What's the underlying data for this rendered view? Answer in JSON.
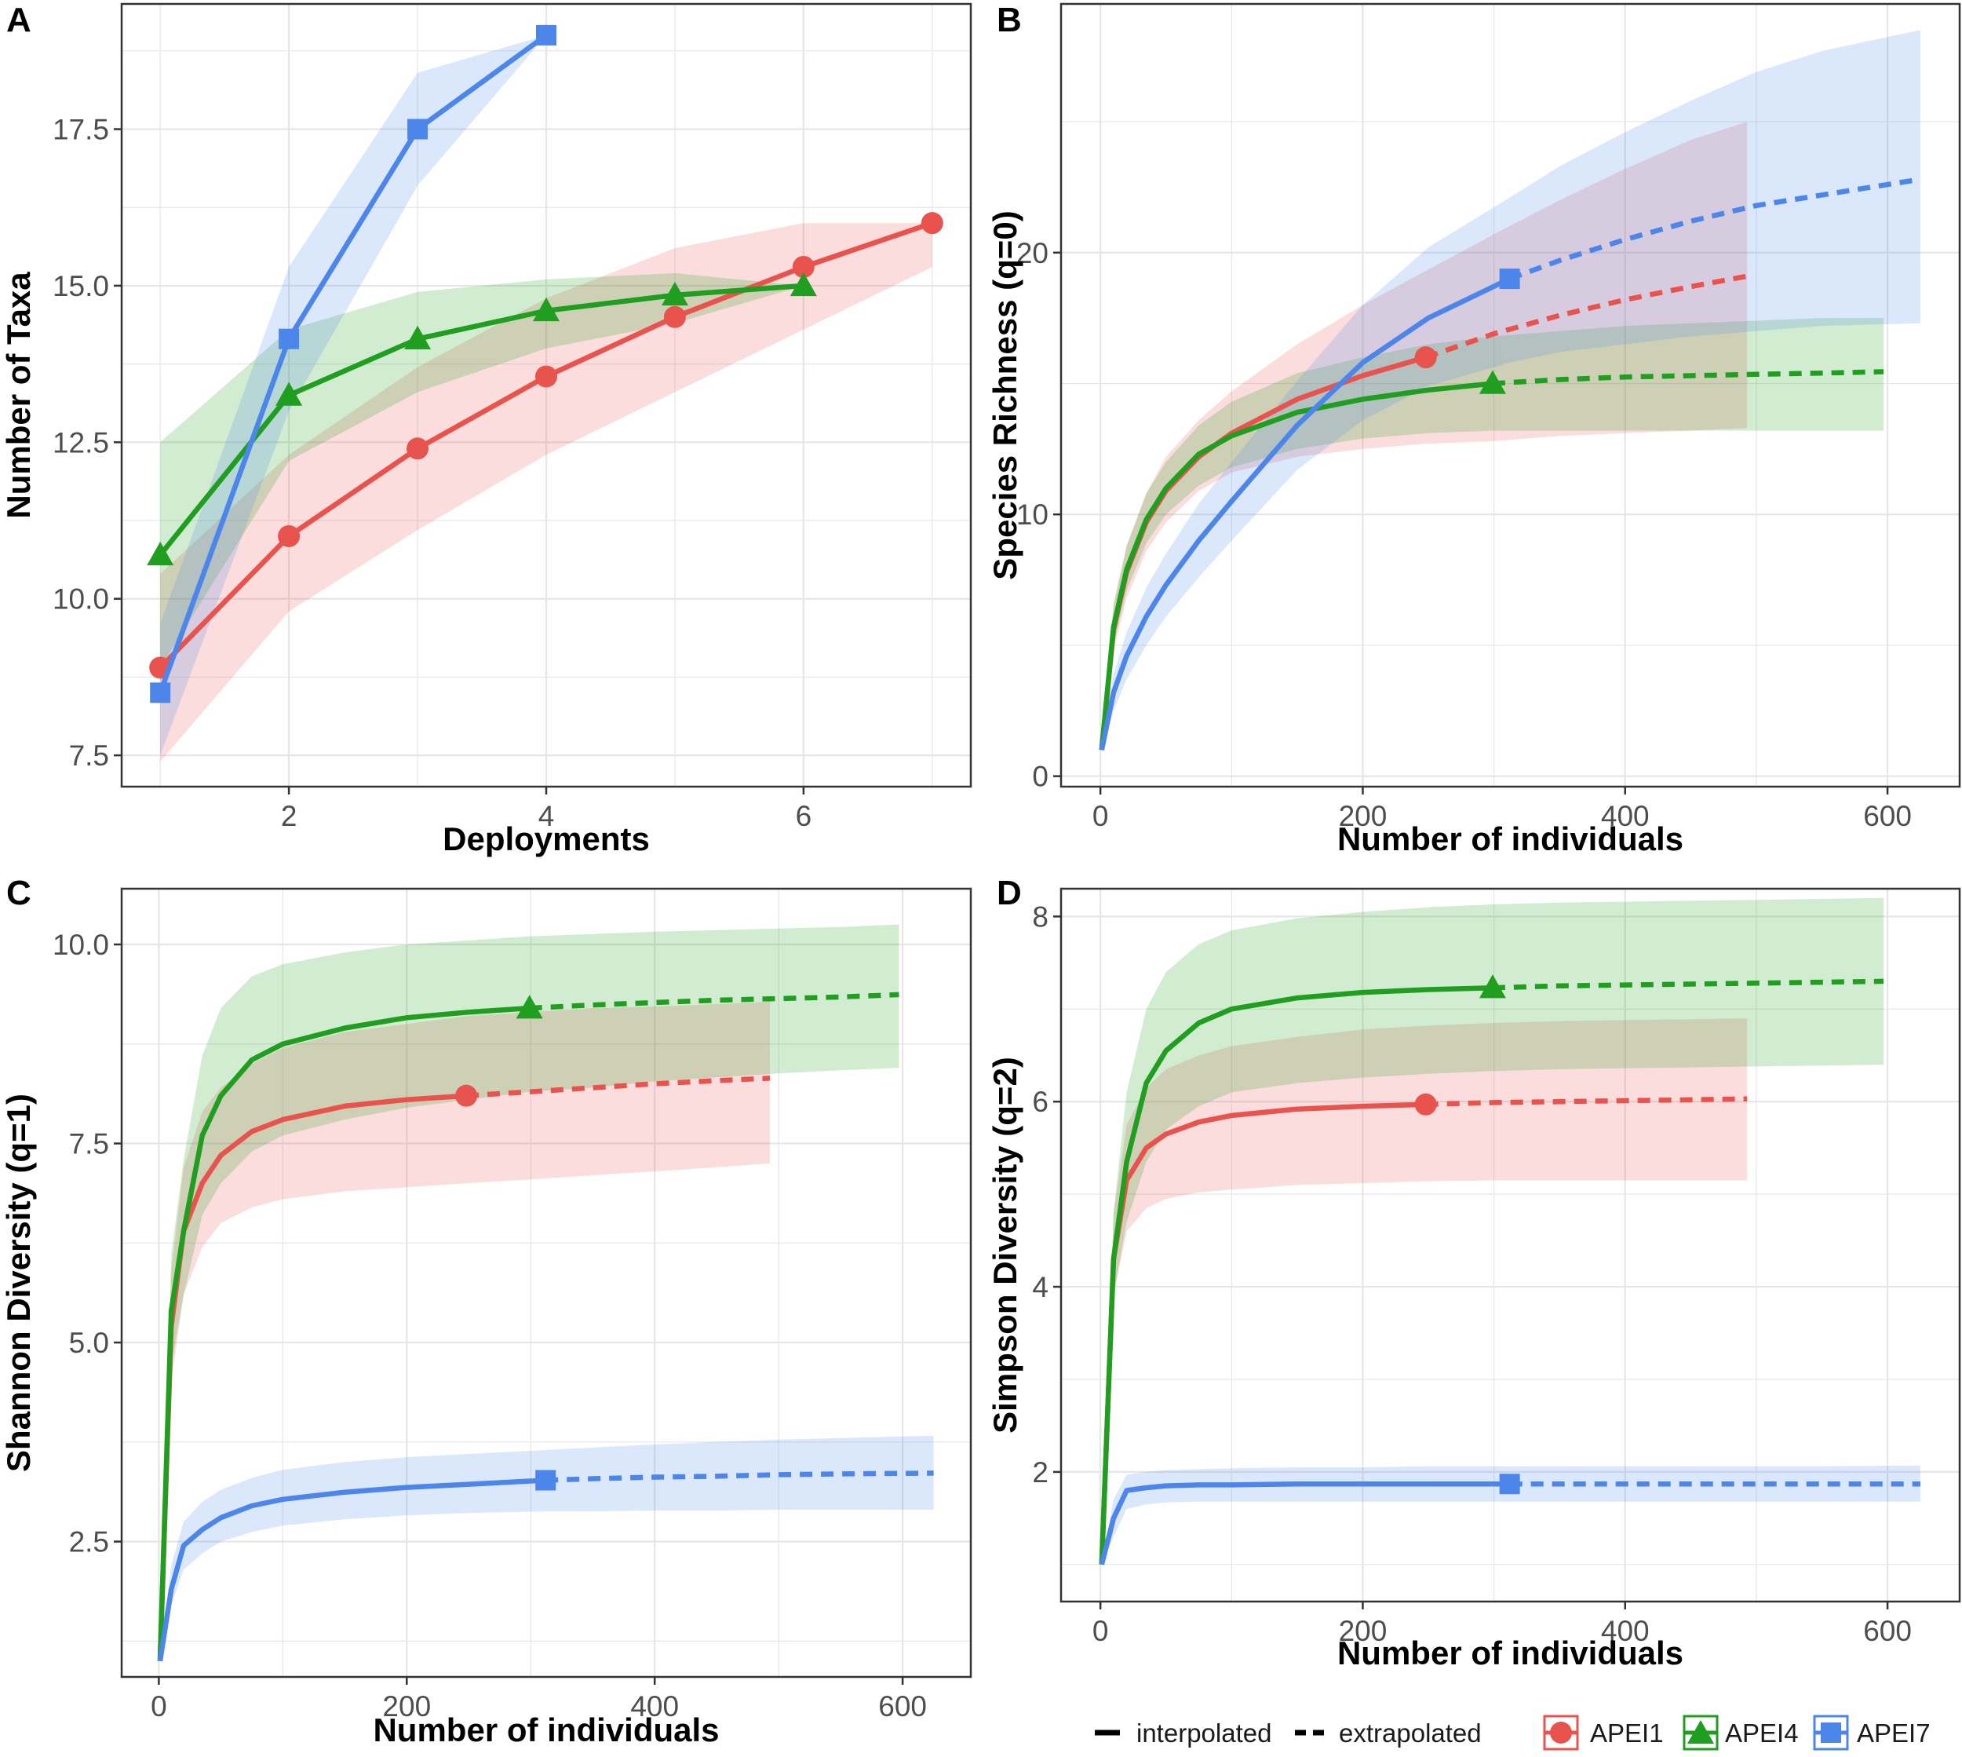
{
  "colors": {
    "APEI1": "#e8534e",
    "APEI4": "#1f9e1f",
    "APEI7": "#4c86ea",
    "grid": "#e6e6e6",
    "panel_border": "#333333"
  },
  "legend": {
    "interpolated": "interpolated",
    "extrapolated": "extrapolated",
    "series": [
      "APEI1",
      "APEI4",
      "APEI7"
    ]
  },
  "chart_data": [
    {
      "panel": "A",
      "type": "line",
      "xlabel": "Deployments",
      "ylabel": "Number of Taxa",
      "xlim": [
        0.7,
        7.3
      ],
      "ylim": [
        7.0,
        19.5
      ],
      "xticks": [
        2,
        4,
        6
      ],
      "xtick_labels": [
        "2",
        "4",
        "6"
      ],
      "yticks": [
        7.5,
        10.0,
        12.5,
        15.0,
        17.5
      ],
      "ytick_labels": [
        "7.5",
        "10.0",
        "12.5",
        "15.0",
        "17.5"
      ],
      "series": [
        {
          "name": "APEI1",
          "marker": "circle",
          "x": [
            1,
            2,
            3,
            4,
            5,
            6,
            7
          ],
          "y": [
            8.9,
            11.0,
            12.4,
            13.55,
            14.5,
            15.3,
            16.0
          ],
          "lower": [
            7.4,
            9.8,
            11.1,
            12.3,
            13.3,
            14.3,
            15.3
          ],
          "upper": [
            10.4,
            12.3,
            13.7,
            14.8,
            15.6,
            16.0,
            16.0
          ]
        },
        {
          "name": "APEI4",
          "marker": "triangle",
          "x": [
            1,
            2,
            3,
            4,
            5,
            6
          ],
          "y": [
            10.7,
            13.25,
            14.15,
            14.6,
            14.85,
            15.0
          ],
          "lower": [
            8.9,
            12.2,
            13.3,
            14.0,
            14.4,
            15.0
          ],
          "upper": [
            12.5,
            14.3,
            14.9,
            15.1,
            15.2,
            15.0
          ]
        },
        {
          "name": "APEI7",
          "marker": "square",
          "x": [
            1,
            2,
            3,
            4
          ],
          "y": [
            8.5,
            14.15,
            17.5,
            19.0
          ],
          "lower": [
            7.5,
            13.0,
            16.6,
            19.0
          ],
          "upper": [
            9.6,
            15.3,
            18.4,
            19.0
          ]
        }
      ]
    },
    {
      "panel": "B",
      "type": "line",
      "xlabel": "Number of individuals",
      "ylabel": "Species Richness (q=0)",
      "xlim": [
        -30,
        655
      ],
      "ylim": [
        -0.4,
        29.5
      ],
      "xticks": [
        0,
        200,
        400,
        600
      ],
      "xtick_labels": [
        "0",
        "200",
        "400",
        "600"
      ],
      "yticks": [
        0,
        10,
        20
      ],
      "ytick_labels": [
        "0",
        "10",
        "20"
      ],
      "series": [
        {
          "name": "APEI1",
          "marker": "circle",
          "observed": [
            248,
            16.0
          ],
          "x": [
            1,
            10,
            20,
            35,
            50,
            75,
            100,
            150,
            200,
            248,
            300,
            350,
            400,
            450,
            493
          ],
          "y": [
            1.0,
            5.6,
            7.8,
            9.7,
            10.9,
            12.2,
            13.1,
            14.4,
            15.3,
            16.0,
            16.9,
            17.6,
            18.2,
            18.7,
            19.1
          ],
          "lower": [
            1.0,
            4.8,
            6.8,
            8.6,
            9.7,
            10.9,
            11.6,
            12.2,
            12.5,
            12.7,
            12.8,
            13.0,
            13.1,
            13.2,
            13.3
          ],
          "upper": [
            1.0,
            6.6,
            8.8,
            10.8,
            12.2,
            13.6,
            14.7,
            16.5,
            18.0,
            19.3,
            20.7,
            22.0,
            23.2,
            24.3,
            25.0
          ]
        },
        {
          "name": "APEI4",
          "marker": "triangle",
          "observed": [
            299,
            15.0
          ],
          "x": [
            1,
            10,
            20,
            35,
            50,
            75,
            100,
            150,
            200,
            250,
            299,
            350,
            400,
            450,
            500,
            550,
            597
          ],
          "y": [
            1.0,
            5.7,
            7.9,
            9.8,
            11.0,
            12.3,
            13.0,
            13.9,
            14.4,
            14.75,
            15.0,
            15.15,
            15.25,
            15.3,
            15.35,
            15.4,
            15.45
          ],
          "lower": [
            1.0,
            5.0,
            7.1,
            8.9,
            10.0,
            11.1,
            11.8,
            12.5,
            12.9,
            13.1,
            13.2,
            13.2,
            13.2,
            13.2,
            13.2,
            13.2,
            13.2
          ],
          "upper": [
            1.0,
            6.5,
            8.8,
            10.8,
            12.0,
            13.4,
            14.3,
            15.4,
            16.0,
            16.5,
            16.8,
            17.0,
            17.2,
            17.3,
            17.4,
            17.5,
            17.5
          ]
        },
        {
          "name": "APEI7",
          "marker": "square",
          "observed": [
            312,
            19.0
          ],
          "x": [
            1,
            10,
            20,
            35,
            50,
            75,
            100,
            150,
            200,
            250,
            312,
            350,
            400,
            450,
            500,
            550,
            625
          ],
          "y": [
            1.0,
            3.2,
            4.6,
            6.1,
            7.3,
            9.0,
            10.5,
            13.4,
            15.8,
            17.5,
            19.0,
            19.7,
            20.5,
            21.2,
            21.8,
            22.2,
            22.8
          ],
          "lower": [
            1.0,
            2.5,
            3.7,
            5.0,
            6.1,
            7.6,
            9.0,
            11.7,
            13.6,
            14.9,
            15.8,
            16.2,
            16.5,
            16.8,
            17.0,
            17.2,
            17.3
          ],
          "upper": [
            1.0,
            3.9,
            5.5,
            7.2,
            8.5,
            10.4,
            12.0,
            15.1,
            18.0,
            20.2,
            22.1,
            23.3,
            24.6,
            25.8,
            26.9,
            27.7,
            28.5
          ]
        }
      ]
    },
    {
      "panel": "C",
      "type": "line",
      "xlabel": "Number of individuals",
      "ylabel": "Shannon Diversity (q=1)",
      "xlim": [
        -30,
        655
      ],
      "ylim": [
        0.8,
        10.7
      ],
      "xticks": [
        0,
        200,
        400,
        600
      ],
      "xtick_labels": [
        "0",
        "200",
        "400",
        "600"
      ],
      "yticks": [
        2.5,
        5.0,
        7.5,
        10.0
      ],
      "ytick_labels": [
        "2.5",
        "5.0",
        "7.5",
        "10.0"
      ],
      "series": [
        {
          "name": "APEI1",
          "marker": "circle",
          "observed": [
            248,
            8.1
          ],
          "x": [
            1,
            10,
            20,
            35,
            50,
            75,
            100,
            150,
            200,
            248,
            300,
            350,
            400,
            450,
            493
          ],
          "y": [
            1.0,
            5.2,
            6.4,
            7.0,
            7.35,
            7.65,
            7.8,
            7.97,
            8.05,
            8.1,
            8.15,
            8.2,
            8.25,
            8.29,
            8.32
          ],
          "lower": [
            1.0,
            4.5,
            5.6,
            6.2,
            6.5,
            6.7,
            6.8,
            6.9,
            6.95,
            7.0,
            7.05,
            7.1,
            7.15,
            7.2,
            7.25
          ],
          "upper": [
            1.0,
            5.9,
            7.2,
            7.9,
            8.2,
            8.5,
            8.7,
            8.9,
            9.0,
            9.1,
            9.15,
            9.2,
            9.22,
            9.25,
            9.28
          ]
        },
        {
          "name": "APEI4",
          "marker": "triangle",
          "observed": [
            299,
            9.2
          ],
          "x": [
            1,
            10,
            20,
            35,
            50,
            75,
            100,
            150,
            200,
            250,
            299,
            350,
            400,
            450,
            500,
            550,
            597
          ],
          "y": [
            1.0,
            5.4,
            6.4,
            7.6,
            8.1,
            8.55,
            8.75,
            8.95,
            9.08,
            9.15,
            9.2,
            9.24,
            9.27,
            9.3,
            9.32,
            9.34,
            9.37
          ],
          "lower": [
            1.0,
            4.7,
            5.6,
            6.6,
            7.0,
            7.4,
            7.6,
            7.8,
            7.95,
            8.05,
            8.15,
            8.2,
            8.28,
            8.33,
            8.38,
            8.42,
            8.45
          ],
          "upper": [
            1.0,
            6.1,
            7.3,
            8.6,
            9.2,
            9.6,
            9.75,
            9.9,
            10.0,
            10.05,
            10.1,
            10.13,
            10.16,
            10.18,
            10.2,
            10.22,
            10.25
          ]
        },
        {
          "name": "APEI7",
          "marker": "square",
          "observed": [
            312,
            3.27
          ],
          "x": [
            1,
            10,
            20,
            35,
            50,
            75,
            100,
            150,
            200,
            250,
            312,
            350,
            400,
            450,
            500,
            550,
            625
          ],
          "y": [
            1.0,
            1.9,
            2.45,
            2.65,
            2.8,
            2.95,
            3.03,
            3.12,
            3.18,
            3.22,
            3.27,
            3.29,
            3.31,
            3.32,
            3.34,
            3.35,
            3.36
          ],
          "lower": [
            1.0,
            1.7,
            2.15,
            2.35,
            2.5,
            2.62,
            2.7,
            2.78,
            2.83,
            2.86,
            2.88,
            2.88,
            2.89,
            2.89,
            2.9,
            2.9,
            2.9
          ],
          "upper": [
            1.0,
            2.2,
            2.75,
            3.0,
            3.15,
            3.3,
            3.4,
            3.5,
            3.56,
            3.6,
            3.65,
            3.68,
            3.72,
            3.75,
            3.78,
            3.8,
            3.83
          ]
        }
      ]
    },
    {
      "panel": "D",
      "type": "line",
      "xlabel": "Number of individuals",
      "ylabel": "Simpson Diversity (q=2)",
      "xlim": [
        -30,
        655
      ],
      "ylim": [
        0.6,
        8.3
      ],
      "xticks": [
        0,
        200,
        400,
        600
      ],
      "xtick_labels": [
        "0",
        "200",
        "400",
        "600"
      ],
      "yticks": [
        2,
        4,
        6,
        8
      ],
      "ytick_labels": [
        "2",
        "4",
        "6",
        "8"
      ],
      "series": [
        {
          "name": "APEI1",
          "marker": "circle",
          "observed": [
            248,
            5.97
          ],
          "x": [
            1,
            10,
            20,
            35,
            50,
            75,
            100,
            150,
            200,
            248,
            300,
            350,
            400,
            450,
            493
          ],
          "y": [
            1.0,
            4.3,
            5.15,
            5.5,
            5.65,
            5.78,
            5.85,
            5.92,
            5.95,
            5.97,
            5.99,
            6.0,
            6.01,
            6.02,
            6.03
          ],
          "lower": [
            1.0,
            3.9,
            4.6,
            4.85,
            4.95,
            5.02,
            5.05,
            5.1,
            5.12,
            5.14,
            5.15,
            5.15,
            5.15,
            5.15,
            5.15
          ],
          "upper": [
            1.0,
            4.8,
            5.75,
            6.15,
            6.35,
            6.5,
            6.6,
            6.7,
            6.78,
            6.82,
            6.85,
            6.87,
            6.88,
            6.89,
            6.9
          ]
        },
        {
          "name": "APEI4",
          "marker": "triangle",
          "observed": [
            299,
            7.23
          ],
          "x": [
            1,
            10,
            20,
            35,
            50,
            75,
            100,
            150,
            200,
            250,
            299,
            350,
            400,
            450,
            500,
            550,
            597
          ],
          "y": [
            1.0,
            4.3,
            5.35,
            6.2,
            6.55,
            6.85,
            7.0,
            7.12,
            7.18,
            7.21,
            7.23,
            7.25,
            7.26,
            7.27,
            7.28,
            7.29,
            7.3
          ],
          "lower": [
            1.0,
            3.9,
            4.7,
            5.35,
            5.7,
            5.95,
            6.1,
            6.2,
            6.26,
            6.3,
            6.33,
            6.35,
            6.36,
            6.37,
            6.38,
            6.39,
            6.4
          ],
          "upper": [
            1.0,
            4.8,
            6.1,
            7.0,
            7.4,
            7.7,
            7.85,
            7.98,
            8.05,
            8.1,
            8.13,
            8.15,
            8.16,
            8.17,
            8.18,
            8.19,
            8.2
          ]
        },
        {
          "name": "APEI7",
          "marker": "square",
          "observed": [
            312,
            1.87
          ],
          "x": [
            1,
            10,
            20,
            35,
            50,
            75,
            100,
            150,
            200,
            250,
            312,
            350,
            400,
            450,
            500,
            550,
            625
          ],
          "y": [
            1.0,
            1.5,
            1.8,
            1.83,
            1.85,
            1.86,
            1.86,
            1.87,
            1.87,
            1.87,
            1.87,
            1.87,
            1.87,
            1.87,
            1.87,
            1.87,
            1.87
          ],
          "lower": [
            1.0,
            1.3,
            1.6,
            1.65,
            1.67,
            1.68,
            1.68,
            1.68,
            1.68,
            1.68,
            1.68,
            1.68,
            1.68,
            1.68,
            1.68,
            1.68,
            1.68
          ],
          "upper": [
            1.0,
            1.7,
            1.97,
            2.0,
            2.02,
            2.03,
            2.04,
            2.05,
            2.05,
            2.06,
            2.06,
            2.06,
            2.06,
            2.06,
            2.06,
            2.06,
            2.07
          ]
        }
      ]
    }
  ]
}
